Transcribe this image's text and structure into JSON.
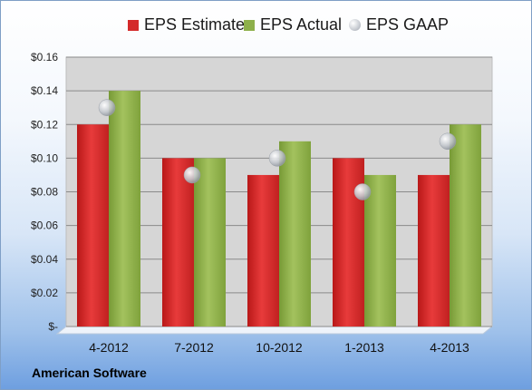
{
  "chart_data": {
    "type": "bar",
    "categories": [
      "4-2012",
      "7-2012",
      "10-2012",
      "1-2013",
      "4-2013"
    ],
    "series": [
      {
        "name": "EPS Estimate",
        "kind": "bar",
        "color": "#d42a2a",
        "values": [
          0.12,
          0.1,
          0.09,
          0.1,
          0.09
        ]
      },
      {
        "name": "EPS Actual",
        "kind": "bar",
        "color": "#8db04a",
        "values": [
          0.14,
          0.1,
          0.11,
          0.09,
          0.12
        ]
      },
      {
        "name": "EPS GAAP",
        "kind": "scatter",
        "color": "#c8ccd2",
        "values": [
          0.13,
          0.09,
          0.1,
          0.08,
          0.11
        ]
      }
    ],
    "yticks": [
      {
        "value": 0.16,
        "label": "$0.16"
      },
      {
        "value": 0.14,
        "label": "$0.14"
      },
      {
        "value": 0.12,
        "label": "$0.12"
      },
      {
        "value": 0.1,
        "label": "$0.10"
      },
      {
        "value": 0.08,
        "label": "$0.08"
      },
      {
        "value": 0.06,
        "label": "$0.06"
      },
      {
        "value": 0.04,
        "label": "$0.04"
      },
      {
        "value": 0.02,
        "label": "$0.02"
      },
      {
        "value": 0,
        "label": "$-"
      }
    ],
    "ylim": [
      0,
      0.16
    ],
    "grid": true,
    "legend_position": "top"
  },
  "footer": {
    "label": "American Software"
  }
}
